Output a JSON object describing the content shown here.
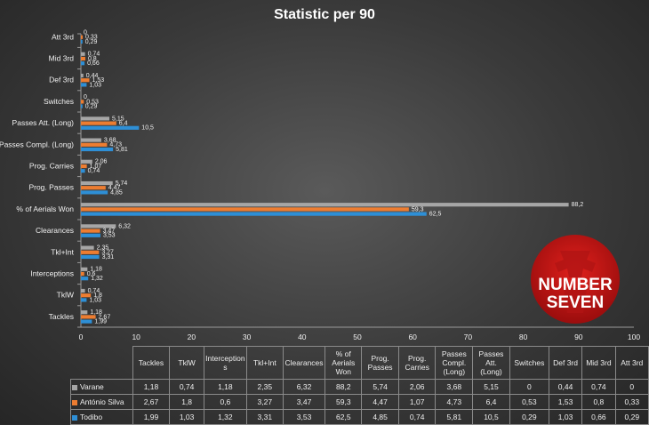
{
  "chart_data": {
    "type": "bar",
    "orientation": "horizontal",
    "title": "Statistic per 90",
    "categories": [
      "Tackles",
      "TklW",
      "Interceptions",
      "Tkl+Int",
      "Clearances",
      "% of Aerials Won",
      "Prog. Passes",
      "Prog. Carries",
      "Passes Compl. (Long)",
      "Passes Att. (Long)",
      "Switches",
      "Def 3rd",
      "Mid 3rd",
      "Att 3rd"
    ],
    "table_headers": [
      "Tackles",
      "TklW",
      "Interception s",
      "Tkl+Int",
      "Clearances",
      "% of Aerials Won",
      "Prog. Passes",
      "Prog. Carries",
      "Passes Compl. (Long)",
      "Passes Att. (Long)",
      "Switches",
      "Def 3rd",
      "Mid 3rd",
      "Att 3rd"
    ],
    "series": [
      {
        "name": "Varane",
        "color": "#a6a6a6",
        "values": [
          1.18,
          0.74,
          1.18,
          2.35,
          6.32,
          88.2,
          5.74,
          2.06,
          3.68,
          5.15,
          0,
          0.44,
          0.74,
          0
        ],
        "labels": [
          "1,18",
          "0,74",
          "1,18",
          "2,35",
          "6,32",
          "88,2",
          "5,74",
          "2,06",
          "3,68",
          "5,15",
          "0",
          "0,44",
          "0,74",
          "0"
        ]
      },
      {
        "name": "António Silva",
        "color": "#ed7d31",
        "values": [
          2.67,
          1.8,
          0.6,
          3.27,
          3.47,
          59.3,
          4.47,
          1.07,
          4.73,
          6.4,
          0.53,
          1.53,
          0.8,
          0.33
        ],
        "labels": [
          "2,67",
          "1,8",
          "0,6",
          "3,27",
          "3,47",
          "59,3",
          "4,47",
          "1,07",
          "4,73",
          "6,4",
          "0,53",
          "1,53",
          "0,8",
          "0,33"
        ]
      },
      {
        "name": "Todibo",
        "color": "#2e8fd6",
        "values": [
          1.99,
          1.03,
          1.32,
          3.31,
          3.53,
          62.5,
          4.85,
          0.74,
          5.81,
          10.5,
          0.29,
          1.03,
          0.66,
          0.29
        ],
        "labels": [
          "1,99",
          "1,03",
          "1,32",
          "3,31",
          "3,53",
          "62,5",
          "4,85",
          "0,74",
          "5,81",
          "10,5",
          "0,29",
          "1,03",
          "0,66",
          "0,29"
        ]
      }
    ],
    "xlim": [
      0,
      100
    ],
    "xticks": [
      0,
      10,
      20,
      30,
      40,
      50,
      60,
      70,
      80,
      90,
      100
    ],
    "grid": false,
    "legend": "data table below chart"
  },
  "logo": {
    "line1": "NUMBER",
    "line2": "SEVEN"
  }
}
